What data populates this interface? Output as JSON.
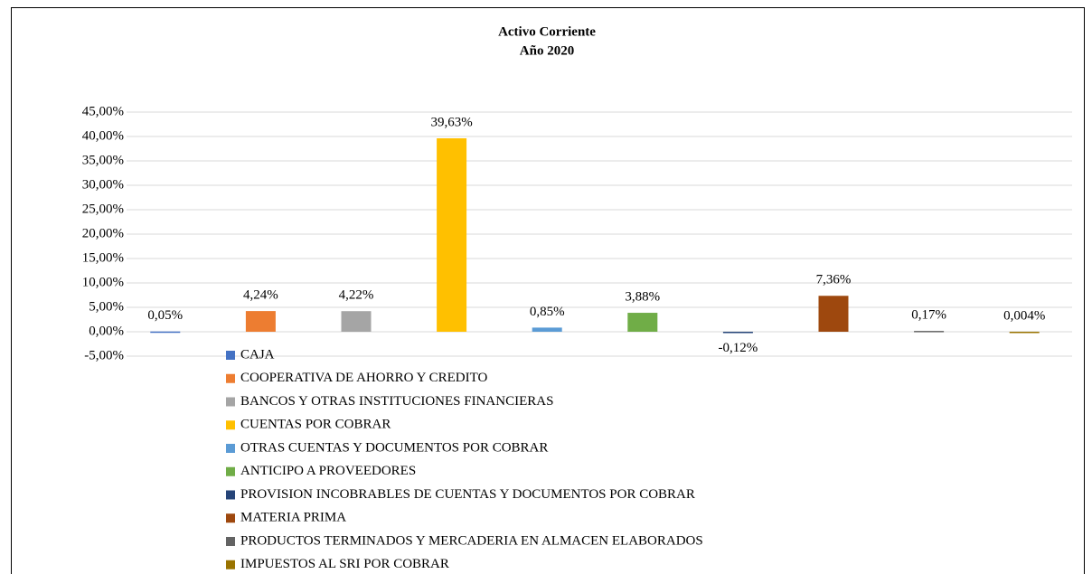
{
  "chart_data": {
    "type": "bar",
    "title": "Activo Corriente",
    "subtitle": "Año 2020",
    "ylim": [
      -5,
      45
    ],
    "yticks": [
      {
        "value": -5,
        "label": "-5,00%"
      },
      {
        "value": 0,
        "label": "0,00%"
      },
      {
        "value": 5,
        "label": "5,00%"
      },
      {
        "value": 10,
        "label": "10,00%"
      },
      {
        "value": 15,
        "label": "15,00%"
      },
      {
        "value": 20,
        "label": "20,00%"
      },
      {
        "value": 25,
        "label": "25,00%"
      },
      {
        "value": 30,
        "label": "30,00%"
      },
      {
        "value": 35,
        "label": "35,00%"
      },
      {
        "value": 40,
        "label": "40,00%"
      },
      {
        "value": 45,
        "label": "45,00%"
      }
    ],
    "grid": true,
    "series": [
      {
        "name": "CAJA",
        "color": "#4472c4",
        "values": [
          0.05
        ],
        "value_labels": [
          "0,05%"
        ]
      },
      {
        "name": "COOPERATIVA DE AHORRO Y CREDITO",
        "color": "#ed7d31",
        "values": [
          4.24
        ],
        "value_labels": [
          "4,24%"
        ]
      },
      {
        "name": "BANCOS Y OTRAS INSTITUCIONES FINANCIERAS",
        "color": "#a5a5a5",
        "values": [
          4.22
        ],
        "value_labels": [
          "4,22%"
        ]
      },
      {
        "name": "CUENTAS POR COBRAR",
        "color": "#ffc000",
        "values": [
          39.63
        ],
        "value_labels": [
          "39,63%"
        ]
      },
      {
        "name": "OTRAS CUENTAS Y DOCUMENTOS POR COBRAR",
        "color": "#5b9bd5",
        "values": [
          0.85
        ],
        "value_labels": [
          "0,85%"
        ]
      },
      {
        "name": "ANTICIPO A PROVEEDORES",
        "color": "#70ad47",
        "values": [
          3.88
        ],
        "value_labels": [
          "3,88%"
        ]
      },
      {
        "name": "PROVISION INCOBRABLES DE CUENTAS Y DOCUMENTOS POR COBRAR",
        "color": "#264478",
        "values": [
          -0.12
        ],
        "value_labels": [
          "-0,12%"
        ]
      },
      {
        "name": "MATERIA PRIMA",
        "color": "#9e480e",
        "values": [
          7.36
        ],
        "value_labels": [
          "7,36%"
        ]
      },
      {
        "name": "PRODUCTOS TERMINADOS Y MERCADERIA EN ALMACEN ELABORADOS",
        "color": "#636363",
        "values": [
          0.17
        ],
        "value_labels": [
          "0,17%"
        ]
      },
      {
        "name": "IMPUESTOS AL SRI POR COBRAR",
        "color": "#997300",
        "values": [
          0.004
        ],
        "value_labels": [
          "0,004%"
        ]
      }
    ]
  }
}
